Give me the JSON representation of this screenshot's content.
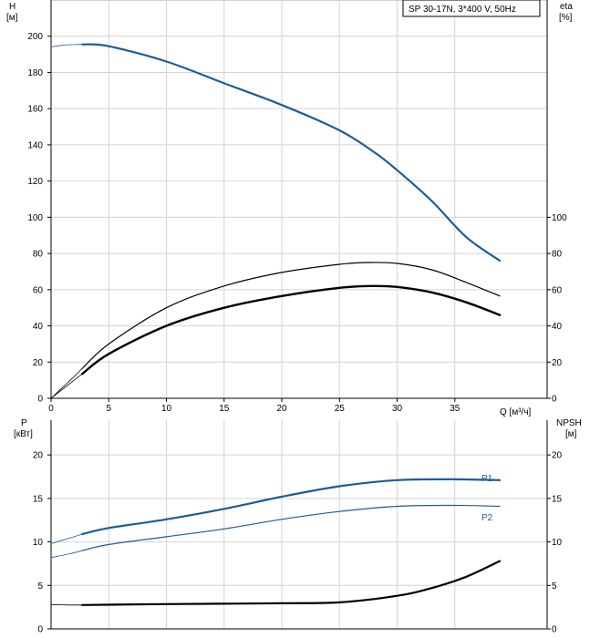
{
  "legend_box": "SP 30-17N, 3*400 V, 50Hz",
  "colors": {
    "blue": "#1f5c99",
    "black": "#000000",
    "grid": "#d4d4d4",
    "axis": "#000000"
  },
  "chart_data": [
    {
      "type": "line",
      "panel": "top",
      "xlabel": "Q [м³/ч]",
      "ylabel_left": [
        "H",
        "[м]"
      ],
      "ylabel_right": [
        "eta",
        "[%]"
      ],
      "xlim": [
        0,
        43
      ],
      "ylim_left": [
        0,
        220
      ],
      "ylim_right": [
        0,
        220
      ],
      "x_ticks": [
        0,
        5,
        10,
        15,
        20,
        25,
        30,
        35
      ],
      "y_ticks_left": [
        0,
        20,
        40,
        60,
        80,
        100,
        120,
        140,
        160,
        180,
        200
      ],
      "y_ticks_right": [
        0,
        20,
        40,
        60,
        80,
        100
      ],
      "grid": true,
      "series": [
        {
          "key": "H-ext",
          "color": "blue",
          "width": 0.8,
          "x": [
            0,
            1,
            2,
            2.7
          ],
          "y": [
            194,
            195,
            195.4,
            195.5
          ]
        },
        {
          "key": "H",
          "color": "blue",
          "width": 2.2,
          "x": [
            2.7,
            5,
            10,
            15,
            20,
            25,
            28,
            30,
            33,
            36,
            38.9
          ],
          "y": [
            195.5,
            194.5,
            186,
            174,
            162,
            148,
            136,
            126,
            109,
            89,
            76
          ]
        },
        {
          "key": "eta-ext",
          "color": "black",
          "width": 0.8,
          "x": [
            0,
            1,
            2,
            2.7
          ],
          "y": [
            0,
            6,
            12,
            16.5
          ]
        },
        {
          "key": "eta",
          "color": "black",
          "width": 1.2,
          "x": [
            2.7,
            5,
            10,
            15,
            20,
            25,
            27.5,
            30,
            33,
            36,
            38.9
          ],
          "y": [
            16.5,
            30,
            50,
            62,
            69.5,
            74,
            75,
            74.5,
            71,
            64,
            56.5
          ]
        },
        {
          "key": "eta2-ext",
          "color": "black",
          "width": 0.8,
          "x": [
            0,
            1,
            2,
            2.7
          ],
          "y": [
            0,
            5,
            10,
            13.5
          ]
        },
        {
          "key": "eta2",
          "color": "black",
          "width": 2.4,
          "x": [
            2.7,
            5,
            10,
            15,
            20,
            25,
            28,
            30,
            33,
            36,
            38.9
          ],
          "y": [
            13.5,
            24.5,
            40,
            50,
            56.5,
            61,
            62,
            61.5,
            58.5,
            53,
            46
          ]
        }
      ]
    },
    {
      "type": "line",
      "panel": "bottom",
      "ylabel_left": [
        "P",
        "[кВт]"
      ],
      "ylabel_right": [
        "NPSH",
        "[м]"
      ],
      "xlim": [
        0,
        43
      ],
      "ylim_left": [
        0,
        24
      ],
      "ylim_right": [
        0,
        24
      ],
      "y_ticks_left": [
        0,
        5,
        10,
        15,
        20
      ],
      "y_ticks_right": [
        0,
        5,
        10,
        15,
        20
      ],
      "grid": true,
      "series": [
        {
          "key": "P1-ext",
          "color": "blue",
          "width": 0.8,
          "x": [
            0,
            1.5,
            2.7
          ],
          "y": [
            9.8,
            10.4,
            10.9
          ]
        },
        {
          "key": "P1",
          "name": "P1",
          "color": "blue",
          "width": 2.2,
          "x": [
            2.7,
            5,
            10,
            15,
            20,
            25,
            30,
            35,
            38.9
          ],
          "y": [
            10.9,
            11.6,
            12.6,
            13.8,
            15.2,
            16.4,
            17.1,
            17.2,
            17.1
          ]
        },
        {
          "key": "P2-ext",
          "color": "blue",
          "width": 0.8,
          "x": [
            0,
            1.5,
            2.7
          ],
          "y": [
            8.2,
            8.6,
            9.0
          ]
        },
        {
          "key": "P2",
          "name": "P2",
          "color": "blue",
          "width": 1.2,
          "x": [
            2.7,
            5,
            10,
            15,
            20,
            25,
            30,
            35,
            38.9
          ],
          "y": [
            9.0,
            9.7,
            10.6,
            11.5,
            12.6,
            13.5,
            14.1,
            14.2,
            14.1
          ]
        },
        {
          "key": "NPSH-ext",
          "color": "black",
          "width": 0.8,
          "x": [
            0,
            1.5,
            2.7
          ],
          "y": [
            2.8,
            2.75,
            2.75
          ]
        },
        {
          "key": "NPSH",
          "color": "black",
          "width": 2.2,
          "x": [
            2.7,
            10,
            20,
            25,
            30,
            33,
            36,
            38.9
          ],
          "y": [
            2.75,
            2.85,
            2.95,
            3.05,
            3.8,
            4.7,
            6.0,
            7.8
          ]
        }
      ],
      "labels": [
        {
          "text": "P1",
          "series": "P1"
        },
        {
          "text": "P2",
          "series": "P2"
        }
      ]
    }
  ]
}
